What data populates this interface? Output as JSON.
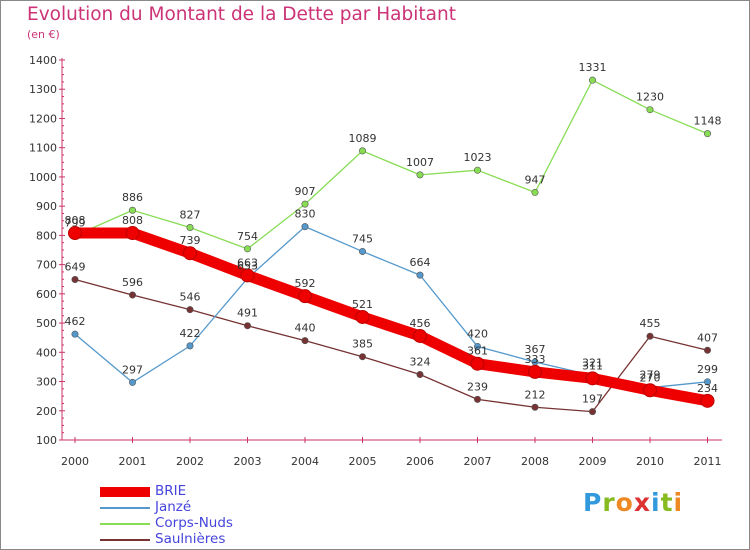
{
  "header": {
    "title": "Evolution du Montant de la Dette par Habitant",
    "subtitle": "(en €)"
  },
  "brand": {
    "letters": [
      "P",
      "r",
      "o",
      "x",
      "i",
      "t",
      "i"
    ],
    "colors": [
      "#3399dd",
      "#88bb22",
      "#ee8822",
      "#dd3333",
      "#3399dd",
      "#88bb22",
      "#ee8822"
    ]
  },
  "chart_data": {
    "type": "line",
    "title": "Evolution du Montant de la Dette par Habitant",
    "subtitle": "(en €)",
    "x": [
      "2000",
      "2001",
      "2002",
      "2003",
      "2004",
      "2005",
      "2006",
      "2007",
      "2008",
      "2009",
      "2010",
      "2011"
    ],
    "ylim": [
      100,
      1400
    ],
    "yticks": [
      100,
      200,
      300,
      400,
      500,
      600,
      700,
      800,
      900,
      1000,
      1100,
      1200,
      1300,
      1400
    ],
    "grid": false,
    "legend": "bottom-left",
    "series": [
      {
        "name": "BRIE",
        "color": "#ee0000",
        "values": [
          808,
          808,
          739,
          663,
          592,
          521,
          456,
          361,
          333,
          311,
          270,
          234
        ]
      },
      {
        "name": "Janzé",
        "color": "#5599cc",
        "values": [
          462,
          297,
          422,
          653,
          830,
          745,
          664,
          420,
          367,
          321,
          279,
          299
        ]
      },
      {
        "name": "Corps-Nuds",
        "color": "#88dd55",
        "values": [
          799,
          886,
          827,
          754,
          907,
          1089,
          1007,
          1023,
          947,
          1331,
          1230,
          1148
        ]
      },
      {
        "name": "Saulnières",
        "color": "#773333",
        "values": [
          649,
          596,
          546,
          491,
          440,
          385,
          324,
          239,
          212,
          197,
          455,
          407
        ]
      }
    ]
  }
}
